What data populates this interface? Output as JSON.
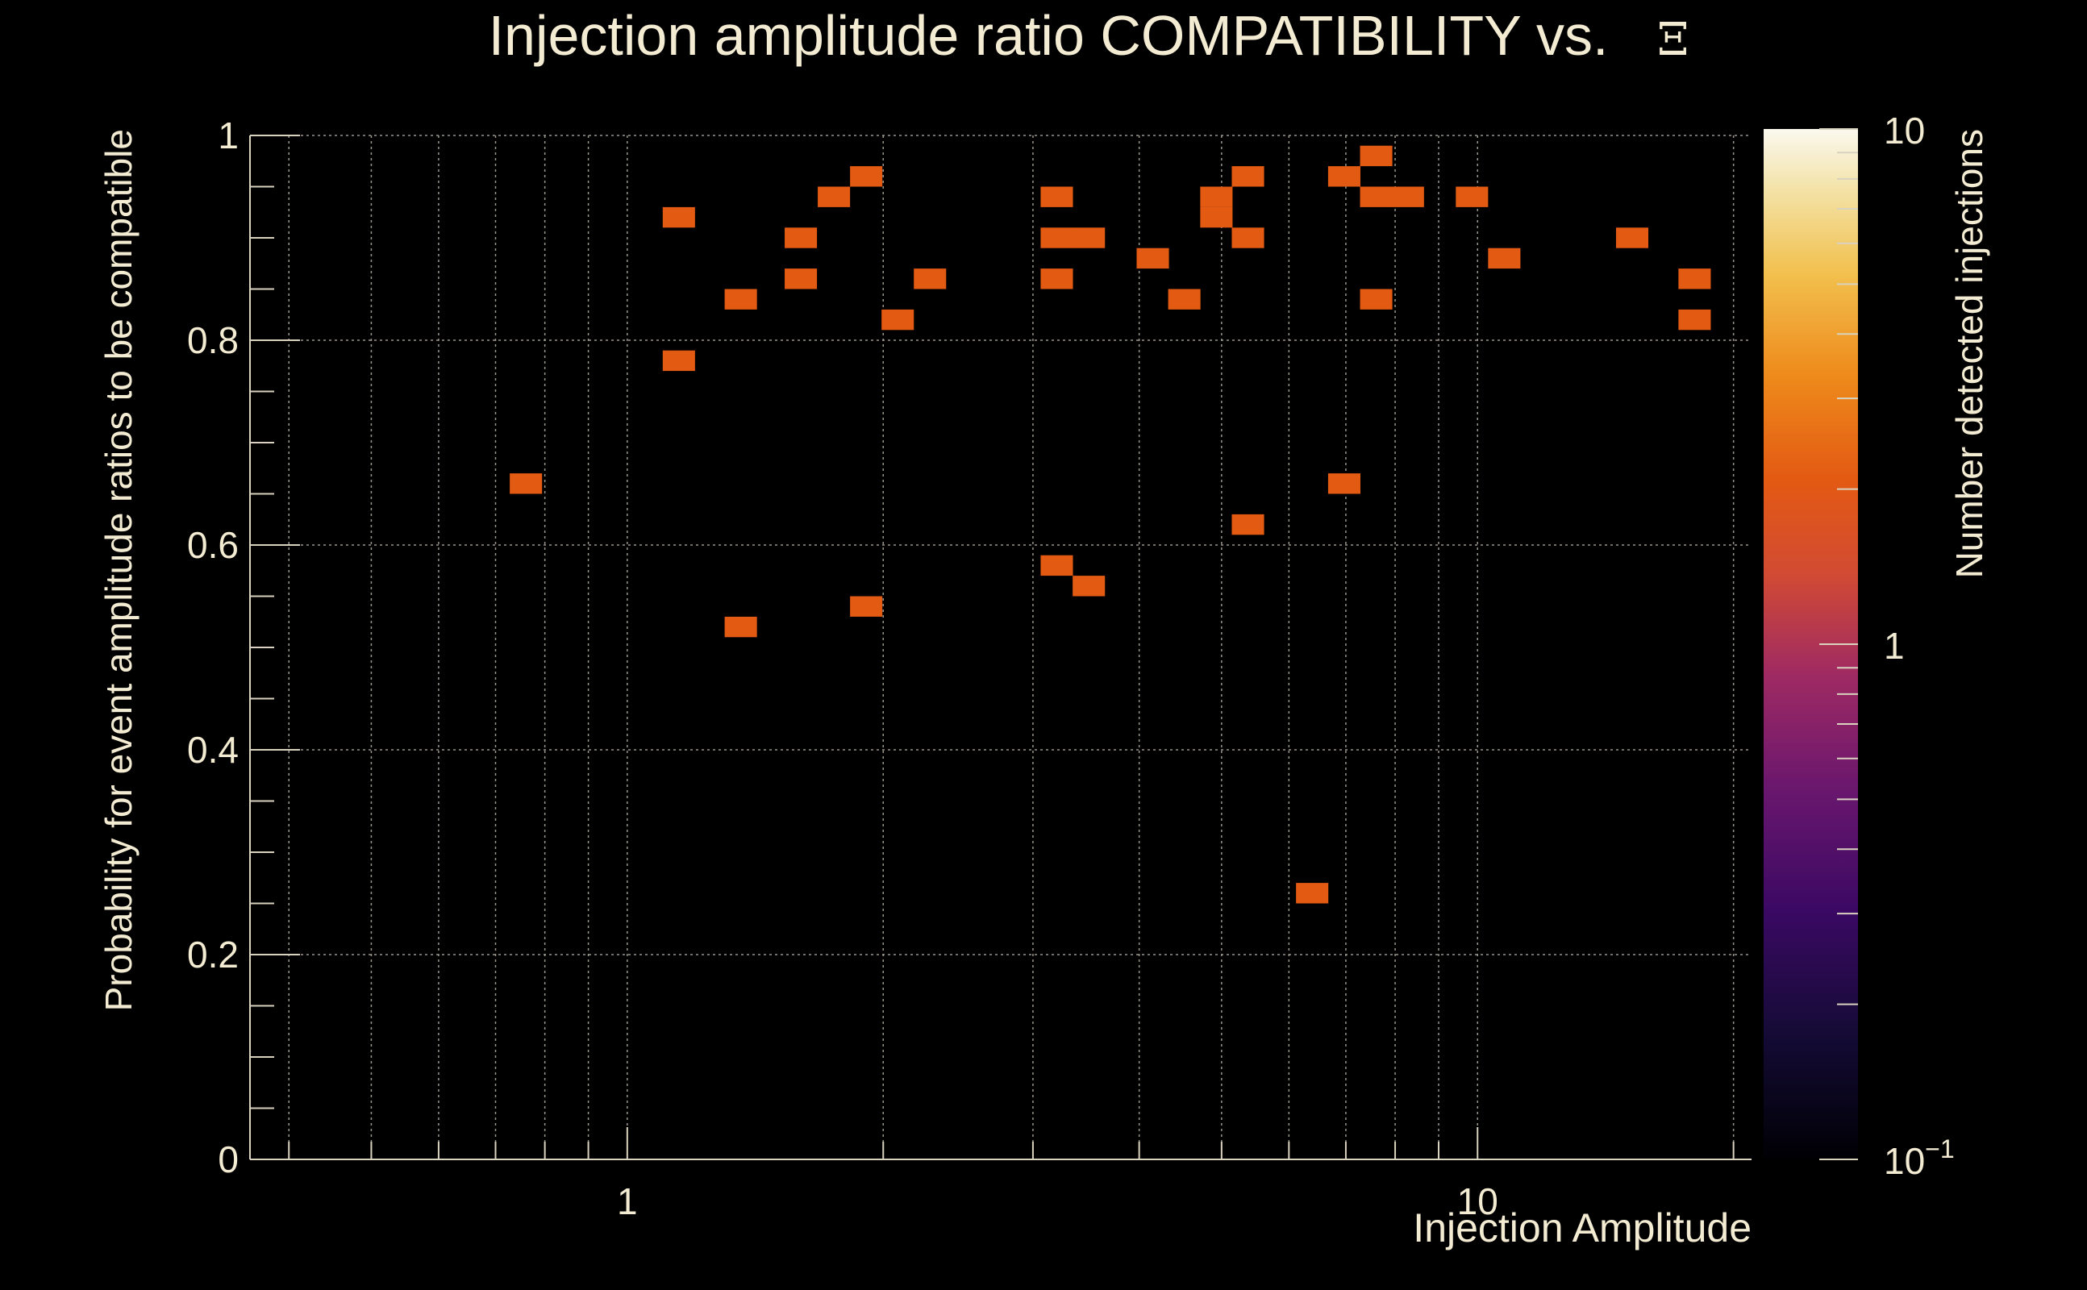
{
  "chart_data": {
    "type": "heatmap",
    "title": "Injection amplitude ratio COMPATIBILITY vs.",
    "title_symbol": "Ξ",
    "xlabel": "Injection Amplitude",
    "ylabel": "Probability for event amplitude ratios to be compatible",
    "zlabel": "Number detected injections",
    "x_scale": "log",
    "xlim": [
      0.36,
      21
    ],
    "ylim": [
      0,
      1
    ],
    "zlim": [
      0.1,
      10
    ],
    "x_tick_labels": [
      {
        "value": 1,
        "label": "1"
      },
      {
        "value": 10,
        "label": "10"
      }
    ],
    "y_tick_labels": [
      {
        "value": 0,
        "label": "0"
      },
      {
        "value": 0.2,
        "label": "0.2"
      },
      {
        "value": 0.4,
        "label": "0.4"
      },
      {
        "value": 0.6,
        "label": "0.6"
      },
      {
        "value": 0.8,
        "label": "0.8"
      },
      {
        "value": 1,
        "label": "1"
      }
    ],
    "z_tick_labels": [
      {
        "value": 10,
        "label": "10"
      },
      {
        "value": 1,
        "label": "1"
      },
      {
        "value": 0.1,
        "label": "10",
        "exponent": "−1"
      }
    ],
    "grid": true,
    "bins": [
      {
        "x": 0.76,
        "y": 0.66,
        "z": 1
      },
      {
        "x": 1.15,
        "y": 0.92,
        "z": 1
      },
      {
        "x": 1.15,
        "y": 0.78,
        "z": 1
      },
      {
        "x": 1.36,
        "y": 0.84,
        "z": 1
      },
      {
        "x": 1.36,
        "y": 0.52,
        "z": 1
      },
      {
        "x": 1.6,
        "y": 0.9,
        "z": 1
      },
      {
        "x": 1.6,
        "y": 0.86,
        "z": 1
      },
      {
        "x": 1.75,
        "y": 0.94,
        "z": 1
      },
      {
        "x": 1.91,
        "y": 0.96,
        "z": 1
      },
      {
        "x": 1.91,
        "y": 0.54,
        "z": 1
      },
      {
        "x": 2.08,
        "y": 0.82,
        "z": 1
      },
      {
        "x": 2.27,
        "y": 0.86,
        "z": 1
      },
      {
        "x": 3.2,
        "y": 0.94,
        "z": 1
      },
      {
        "x": 3.2,
        "y": 0.9,
        "z": 1
      },
      {
        "x": 3.2,
        "y": 0.86,
        "z": 1
      },
      {
        "x": 3.2,
        "y": 0.58,
        "z": 1
      },
      {
        "x": 3.49,
        "y": 0.9,
        "z": 1
      },
      {
        "x": 3.49,
        "y": 0.56,
        "z": 1
      },
      {
        "x": 4.15,
        "y": 0.88,
        "z": 1
      },
      {
        "x": 4.52,
        "y": 0.84,
        "z": 1
      },
      {
        "x": 4.93,
        "y": 0.94,
        "z": 1
      },
      {
        "x": 4.93,
        "y": 0.92,
        "z": 1
      },
      {
        "x": 5.37,
        "y": 0.96,
        "z": 1
      },
      {
        "x": 5.37,
        "y": 0.9,
        "z": 1
      },
      {
        "x": 5.37,
        "y": 0.62,
        "z": 1
      },
      {
        "x": 6.39,
        "y": 0.26,
        "z": 1
      },
      {
        "x": 6.97,
        "y": 0.96,
        "z": 1
      },
      {
        "x": 6.97,
        "y": 0.66,
        "z": 1
      },
      {
        "x": 7.6,
        "y": 0.98,
        "z": 1
      },
      {
        "x": 7.6,
        "y": 0.94,
        "z": 1
      },
      {
        "x": 7.6,
        "y": 0.84,
        "z": 1
      },
      {
        "x": 8.28,
        "y": 0.94,
        "z": 1
      },
      {
        "x": 9.85,
        "y": 0.94,
        "z": 1
      },
      {
        "x": 10.75,
        "y": 0.88,
        "z": 1
      },
      {
        "x": 15.2,
        "y": 0.9,
        "z": 1
      },
      {
        "x": 18.0,
        "y": 0.86,
        "z": 1
      },
      {
        "x": 18.0,
        "y": 0.82,
        "z": 1
      }
    ]
  }
}
